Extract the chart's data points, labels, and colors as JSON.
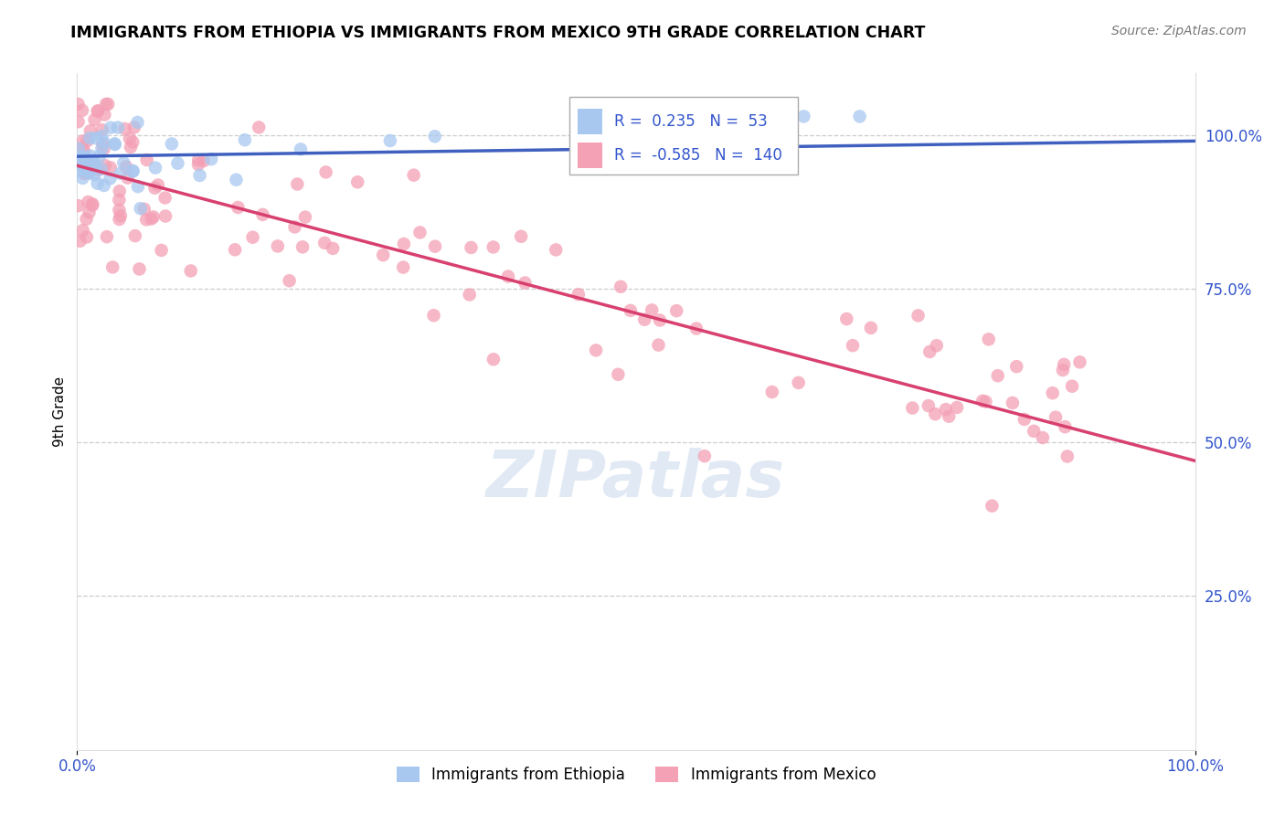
{
  "title": "IMMIGRANTS FROM ETHIOPIA VS IMMIGRANTS FROM MEXICO 9TH GRADE CORRELATION CHART",
  "source_text": "Source: ZipAtlas.com",
  "ylabel": "9th Grade",
  "y_tick_labels": [
    "100.0%",
    "75.0%",
    "50.0%",
    "25.0%"
  ],
  "y_tick_positions": [
    1.0,
    0.75,
    0.5,
    0.25
  ],
  "legend_ethiopia": "Immigrants from Ethiopia",
  "legend_mexico": "Immigrants from Mexico",
  "R_ethiopia": 0.235,
  "N_ethiopia": 53,
  "R_mexico": -0.585,
  "N_mexico": 140,
  "color_ethiopia": "#a8c8f0",
  "color_mexico": "#f4a0b5",
  "line_color_ethiopia": "#4060c0",
  "line_color_mexico": "#d84070",
  "watermark": "ZIPatlas",
  "eth_line_x0": 0.0,
  "eth_line_y0": 0.965,
  "eth_line_x1": 1.0,
  "eth_line_y1": 0.99,
  "mex_line_x0": 0.0,
  "mex_line_y0": 0.95,
  "mex_line_x1": 1.0,
  "mex_line_y1": 0.47,
  "xlim": [
    0.0,
    1.0
  ],
  "ylim": [
    0.0,
    1.1
  ],
  "background_color": "#ffffff"
}
